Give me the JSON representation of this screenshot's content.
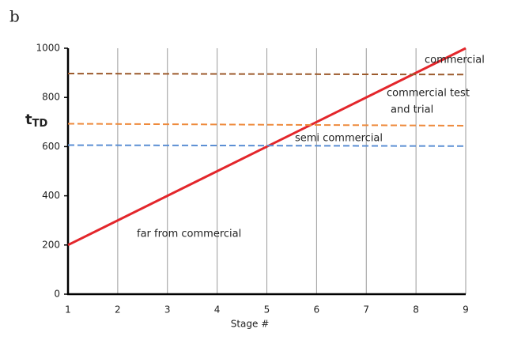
{
  "chart_data": {
    "type": "line",
    "panel_label": "b",
    "xlabel": "Stage #",
    "ylabel": "t",
    "ylabel_sub": "TD",
    "x": [
      1,
      9
    ],
    "series": [
      {
        "color": "#e3262b",
        "dashed": false,
        "values": [
          200,
          1000
        ]
      },
      {
        "color": "#9c5a2c",
        "dashed": true,
        "values": [
          897,
          893
        ]
      },
      {
        "color": "#ee8a3c",
        "dashed": true,
        "values": [
          693,
          685
        ]
      },
      {
        "color": "#5b8fd4",
        "dashed": true,
        "values": [
          606,
          602
        ]
      }
    ],
    "annotations": [
      "commercial",
      "commercial test",
      "and trial",
      "semi commercial",
      "far from commercial"
    ],
    "xlim": [
      1,
      9
    ],
    "xticks": [
      1,
      2,
      3,
      4,
      5,
      6,
      7,
      8,
      9
    ],
    "ylim": [
      0,
      1000
    ],
    "yticks": [
      0,
      200,
      400,
      600,
      800,
      1000
    ],
    "grid": "x"
  }
}
